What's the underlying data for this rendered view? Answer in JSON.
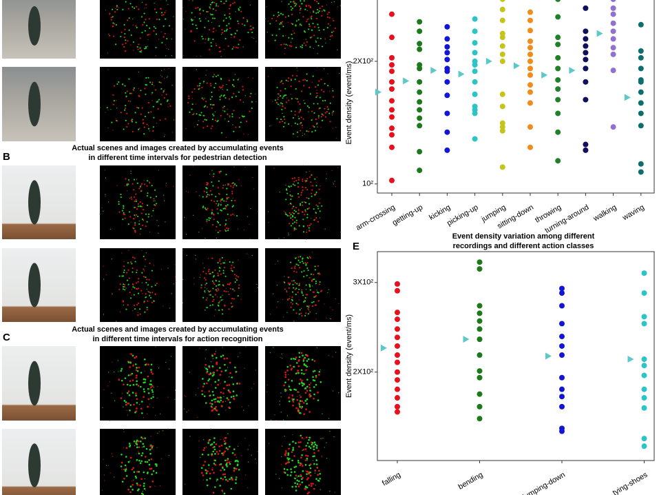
{
  "panel_labels": [
    "B",
    "C",
    "E"
  ],
  "captions": [
    [
      "Actual scenes and images created by accumulating events",
      "in different time intervals for pedestrian detection"
    ],
    [
      "Actual scenes and images created by accumulating events",
      "in different time intervals for action recognition"
    ]
  ],
  "chart_data": [
    {
      "type": "strip",
      "ylabel": "Event density (event/ms)",
      "log_scale": true,
      "ylim": [
        95,
        285
      ],
      "yticks": [
        {
          "value": 100,
          "label": "10²"
        },
        {
          "value": 200,
          "label": "2X10²"
        }
      ],
      "categories": [
        "arm-crossing",
        "getting-up",
        "kicking",
        "picking-up",
        "jumping",
        "sitting-down",
        "throwing",
        "turning-around",
        "walking",
        "waving"
      ],
      "colors": [
        "#e8101c",
        "#1c7a1c",
        "#1414d4",
        "#2cc4c4",
        "#c4c41c",
        "#f08c1c",
        "#22802a",
        "#10105c",
        "#9070d0",
        "#0c6e6e"
      ],
      "mean_color": "#5cc8c8",
      "values": [
        [
          261,
          229,
          204,
          196,
          189,
          178,
          171,
          160,
          152,
          146,
          137,
          132,
          123,
          102
        ],
        [
          250,
          237,
          221,
          214,
          196,
          192,
          178,
          168,
          159,
          152,
          145,
          139,
          120,
          108
        ],
        [
          243,
          227,
          217,
          210,
          202,
          192,
          189,
          178,
          165,
          149,
          134,
          121
        ],
        [
          254,
          237,
          222,
          210,
          200,
          196,
          189,
          178,
          166,
          155,
          152,
          149,
          129
        ],
        [
          284,
          268,
          252,
          234,
          229,
          218,
          208,
          200,
          166,
          155,
          141,
          138,
          135,
          110
        ],
        [
          264,
          252,
          238,
          224,
          216,
          208,
          200,
          192,
          185,
          175,
          168,
          158,
          138,
          123
        ],
        [
          284,
          257,
          229,
          220,
          204,
          192,
          180,
          171,
          161,
          149,
          134,
          114
        ],
        [
          270,
          237,
          227,
          218,
          210,
          202,
          192,
          178,
          161,
          125,
          121
        ],
        [
          284,
          270,
          261,
          248,
          237,
          227,
          216,
          208,
          190,
          138
        ],
        [
          246,
          212,
          204,
          192,
          180,
          178,
          168,
          158,
          149,
          139,
          112,
          107
        ]
      ],
      "means": [
        168,
        179,
        190,
        186,
        200,
        195,
        185,
        190,
        234,
        163
      ]
    },
    {
      "type": "strip",
      "title": [
        "Event density variation among different",
        "recordings and different action classes"
      ],
      "ylabel": "Event density (event/ms)",
      "log_scale": true,
      "ylim": [
        134,
        345
      ],
      "yticks": [
        {
          "value": 200,
          "label": "2X10²"
        },
        {
          "value": 300,
          "label": "3X10²"
        }
      ],
      "categories": [
        "falling",
        "bending",
        "slumping-down",
        "tying-shoes"
      ],
      "colors": [
        "#e8101c",
        "#1c7a1c",
        "#1414d4",
        "#2cc4c4"
      ],
      "mean_color": "#5cc8c8",
      "values": [
        [
          298,
          289,
          262,
          254,
          243,
          234,
          225,
          216,
          209,
          200,
          193,
          185,
          178,
          171,
          167
        ],
        [
          329,
          319,
          270,
          261,
          252,
          243,
          232,
          216,
          201,
          195,
          181,
          171,
          162
        ],
        [
          292,
          286,
          270,
          249,
          235,
          225,
          216,
          195,
          185,
          179,
          171,
          155,
          153
        ],
        [
          313,
          286,
          257,
          249,
          212,
          206,
          197,
          185,
          178,
          170,
          148,
          143
        ]
      ],
      "means": [
        223,
        232,
        215,
        212
      ]
    }
  ]
}
